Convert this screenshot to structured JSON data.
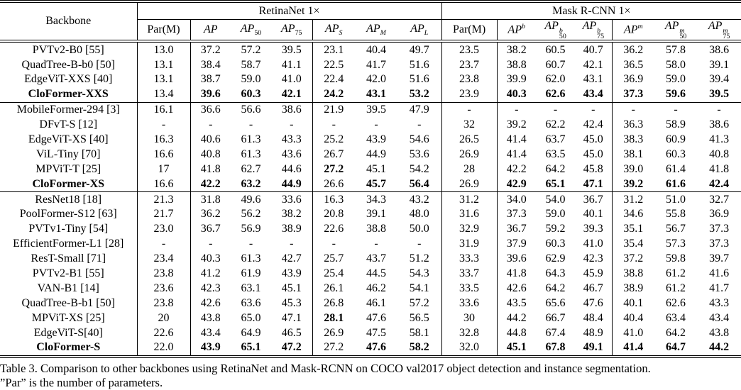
{
  "table": {
    "caption_line1": "Table 3. Comparison to other backbones using RetinaNet and Mask-RCNN on COCO val2017 object detection and instance segmentation.",
    "caption_line2": "”Par” is the number of parameters.",
    "header": {
      "backbone": "Backbone",
      "groups": [
        {
          "label": "RetinaNet 1×"
        },
        {
          "label": "Mask R-CNN 1×"
        }
      ],
      "columns": [
        {
          "text": "Par(M)"
        },
        {
          "base": "AP"
        },
        {
          "base": "AP",
          "sub": "50"
        },
        {
          "base": "AP",
          "sub": "75"
        },
        {
          "base": "AP",
          "sub": "S",
          "subItalic": true
        },
        {
          "base": "AP",
          "sub": "M",
          "subItalic": true
        },
        {
          "base": "AP",
          "sub": "L",
          "subItalic": true
        },
        {
          "text": "Par(M)"
        },
        {
          "base": "AP",
          "sup": "b"
        },
        {
          "base": "AP",
          "sup": "b",
          "sub": "50"
        },
        {
          "base": "AP",
          "sup": "b",
          "sub": "75"
        },
        {
          "base": "AP",
          "sup": "m"
        },
        {
          "base": "AP",
          "sup": "m",
          "sub": "50"
        },
        {
          "base": "AP",
          "sup": "m",
          "sub": "75"
        }
      ]
    },
    "groups": [
      {
        "rows": [
          {
            "name": "PVTv2-B0 [55]",
            "nameBold": false,
            "cells": [
              "13.0",
              "37.2",
              "57.2",
              "39.5",
              "23.1",
              "40.4",
              "49.7",
              "23.5",
              "38.2",
              "60.5",
              "40.7",
              "36.2",
              "57.8",
              "38.6"
            ],
            "bold": []
          },
          {
            "name": "QuadTree-B-b0 [50]",
            "nameBold": false,
            "cells": [
              "13.1",
              "38.4",
              "58.7",
              "41.1",
              "22.5",
              "41.7",
              "51.6",
              "23.7",
              "38.8",
              "60.7",
              "42.1",
              "36.5",
              "58.0",
              "39.1"
            ],
            "bold": []
          },
          {
            "name": "EdgeViT-XXS [40]",
            "nameBold": false,
            "cells": [
              "13.1",
              "38.7",
              "59.0",
              "41.0",
              "22.4",
              "42.0",
              "51.6",
              "23.8",
              "39.9",
              "62.0",
              "43.1",
              "36.9",
              "59.0",
              "39.4"
            ],
            "bold": []
          },
          {
            "name": "CloFormer-XXS",
            "nameBold": true,
            "cells": [
              "13.4",
              "39.6",
              "60.3",
              "42.1",
              "24.2",
              "43.1",
              "53.2",
              "23.9",
              "40.3",
              "62.6",
              "43.4",
              "37.3",
              "59.6",
              "39.5"
            ],
            "bold": [
              1,
              2,
              3,
              4,
              5,
              6,
              8,
              9,
              10,
              11,
              12,
              13
            ]
          }
        ]
      },
      {
        "rows": [
          {
            "name": "MobileFormer-294 [3]",
            "nameBold": false,
            "cells": [
              "16.1",
              "36.6",
              "56.6",
              "38.6",
              "21.9",
              "39.5",
              "47.9",
              "-",
              "-",
              "-",
              "-",
              "-",
              "-",
              "-"
            ],
            "bold": []
          },
          {
            "name": "DFvT-S [12]",
            "nameBold": false,
            "cells": [
              "-",
              "-",
              "-",
              "-",
              "-",
              "-",
              "-",
              "32",
              "39.2",
              "62.2",
              "42.4",
              "36.3",
              "58.9",
              "38.6"
            ],
            "bold": []
          },
          {
            "name": "EdgeViT-XS [40]",
            "nameBold": false,
            "cells": [
              "16.3",
              "40.6",
              "61.3",
              "43.3",
              "25.2",
              "43.9",
              "54.6",
              "26.5",
              "41.4",
              "63.7",
              "45.0",
              "38.3",
              "60.9",
              "41.3"
            ],
            "bold": []
          },
          {
            "name": "ViL-Tiny [70]",
            "nameBold": false,
            "cells": [
              "16.6",
              "40.8",
              "61.3",
              "43.6",
              "26.7",
              "44.9",
              "53.6",
              "26.9",
              "41.4",
              "63.5",
              "45.0",
              "38.1",
              "60.3",
              "40.8"
            ],
            "bold": []
          },
          {
            "name": "MPViT-T [25]",
            "nameBold": false,
            "cells": [
              "17",
              "41.8",
              "62.7",
              "44.6",
              "27.2",
              "45.1",
              "54.2",
              "28",
              "42.2",
              "64.2",
              "45.8",
              "39.0",
              "61.4",
              "41.8"
            ],
            "bold": [
              4
            ]
          },
          {
            "name": "CloFormer-XS",
            "nameBold": true,
            "cells": [
              "16.6",
              "42.2",
              "63.2",
              "44.9",
              "26.6",
              "45.7",
              "56.4",
              "26.9",
              "42.9",
              "65.1",
              "47.1",
              "39.2",
              "61.6",
              "42.4"
            ],
            "bold": [
              1,
              2,
              3,
              5,
              6,
              8,
              9,
              10,
              11,
              12,
              13
            ]
          }
        ]
      },
      {
        "rows": [
          {
            "name": "ResNet18 [18]",
            "nameBold": false,
            "cells": [
              "21.3",
              "31.8",
              "49.6",
              "33.6",
              "16.3",
              "34.3",
              "43.2",
              "31.2",
              "34.0",
              "54.0",
              "36.7",
              "31.2",
              "51.0",
              "32.7"
            ],
            "bold": []
          },
          {
            "name": "PoolFormer-S12 [63]",
            "nameBold": false,
            "cells": [
              "21.7",
              "36.2",
              "56.2",
              "38.2",
              "20.8",
              "39.1",
              "48.0",
              "31.6",
              "37.3",
              "59.0",
              "40.1",
              "34.6",
              "55.8",
              "36.9"
            ],
            "bold": []
          },
          {
            "name": "PVTv1-Tiny [54]",
            "nameBold": false,
            "cells": [
              "23.0",
              "36.7",
              "56.9",
              "38.9",
              "22.6",
              "38.8",
              "50.0",
              "32.9",
              "36.7",
              "59.2",
              "39.3",
              "35.1",
              "56.7",
              "37.3"
            ],
            "bold": []
          },
          {
            "name": "EfficientFormer-L1 [28]",
            "nameBold": false,
            "cells": [
              "-",
              "-",
              "-",
              "-",
              "-",
              "-",
              "-",
              "31.9",
              "37.9",
              "60.3",
              "41.0",
              "35.4",
              "57.3",
              "37.3"
            ],
            "bold": []
          },
          {
            "name": "ResT-Small [71]",
            "nameBold": false,
            "cells": [
              "23.4",
              "40.3",
              "61.3",
              "42.7",
              "25.7",
              "43.7",
              "51.2",
              "33.3",
              "39.6",
              "62.9",
              "42.3",
              "37.2",
              "59.8",
              "39.7"
            ],
            "bold": []
          },
          {
            "name": "PVTv2-B1 [55]",
            "nameBold": false,
            "cells": [
              "23.8",
              "41.2",
              "61.9",
              "43.9",
              "25.4",
              "44.5",
              "54.3",
              "33.7",
              "41.8",
              "64.3",
              "45.9",
              "38.8",
              "61.2",
              "41.6"
            ],
            "bold": []
          },
          {
            "name": "VAN-B1 [14]",
            "nameBold": false,
            "cells": [
              "23.6",
              "42.3",
              "63.1",
              "45.1",
              "26.1",
              "46.2",
              "54.1",
              "33.5",
              "42.6",
              "64.2",
              "46.7",
              "38.9",
              "61.2",
              "41.7"
            ],
            "bold": []
          },
          {
            "name": "QuadTree-B-b1 [50]",
            "nameBold": false,
            "cells": [
              "23.8",
              "42.6",
              "63.6",
              "45.3",
              "26.8",
              "46.1",
              "57.2",
              "33.6",
              "43.5",
              "65.6",
              "47.6",
              "40.1",
              "62.6",
              "43.3"
            ],
            "bold": []
          },
          {
            "name": "MPViT-XS [25]",
            "nameBold": false,
            "cells": [
              "20",
              "43.8",
              "65.0",
              "47.1",
              "28.1",
              "47.6",
              "56.5",
              "30",
              "44.2",
              "66.7",
              "48.4",
              "40.4",
              "63.4",
              "43.4"
            ],
            "bold": [
              4
            ]
          },
          {
            "name": "EdgeViT-S[40]",
            "nameBold": false,
            "cells": [
              "22.6",
              "43.4",
              "64.9",
              "46.5",
              "26.9",
              "47.5",
              "58.1",
              "32.8",
              "44.8",
              "67.4",
              "48.9",
              "41.0",
              "64.2",
              "43.8"
            ],
            "bold": []
          },
          {
            "name": "CloFormer-S",
            "nameBold": true,
            "cells": [
              "22.0",
              "43.9",
              "65.1",
              "47.2",
              "27.2",
              "47.6",
              "58.2",
              "32.0",
              "45.1",
              "67.8",
              "49.1",
              "41.4",
              "64.7",
              "44.2"
            ],
            "bold": [
              1,
              2,
              3,
              5,
              6,
              8,
              9,
              10,
              11,
              12,
              13
            ]
          }
        ]
      }
    ]
  }
}
